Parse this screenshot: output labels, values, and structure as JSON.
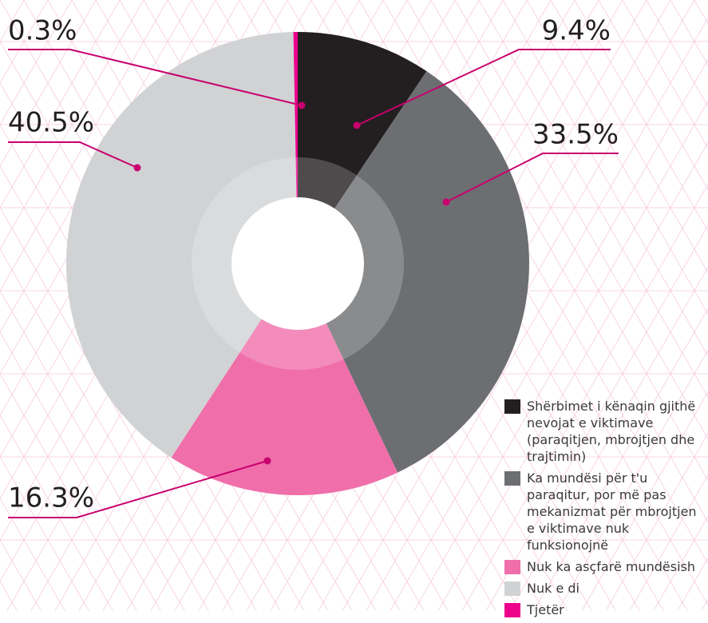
{
  "chart_data": {
    "type": "pie",
    "categories": [
      "Shërbimet i kënaqin gjithë nevojat e viktimave (paraqitjen, mbrojtjen dhe trajtimin)",
      "Ka mundësi për t'u paraqitur, por më pas mekanizmat për mbrojtjen e viktimave nuk funksionojnë",
      "Nuk ka asçfarë mundësish",
      "Nuk e di",
      "Tjetër"
    ],
    "values": [
      9.4,
      33.5,
      16.3,
      40.5,
      0.3
    ],
    "value_labels": [
      "9.4%",
      "33.5%",
      "16.3%",
      "40.5%",
      "0.3%"
    ],
    "colors": [
      "#231f20",
      "#6d6e71",
      "#f06eaa",
      "#d1d2d4",
      "#ec008c"
    ],
    "legend": "bottom-right"
  }
}
